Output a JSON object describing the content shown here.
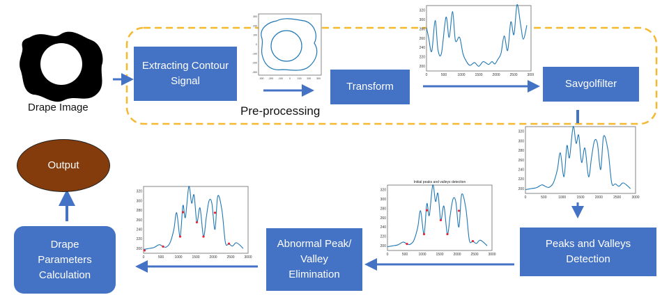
{
  "colors": {
    "box_fill": "#4472c4",
    "dashed_border": "#f5b830",
    "arrow": "#4472c4",
    "output_fill": "#843c0c",
    "signal_line": "#1f77b4",
    "peak_marker": "#e8253a"
  },
  "labels": {
    "drape_image": "Drape Image",
    "extracting": "Extracting Contour\nSignal",
    "transform": "Transform",
    "savgol": "Savgolfilter",
    "preprocessing": "Pre-processing",
    "peaks_valleys": "Peaks and Valleys\nDetection",
    "abnormal": "Abnormal Peak/\nValley\nElimination",
    "drape_params": "Drape\nParameters\nCalculation",
    "output": "Output"
  },
  "plots": {
    "contour": {
      "x_ticks": [
        "-300",
        "-200",
        "-100",
        "0",
        "100",
        "200",
        "300"
      ],
      "y_ticks": [
        "300",
        "200",
        "100",
        "0",
        "-100",
        "-200",
        "-300"
      ]
    },
    "transform": {
      "type": "line",
      "x_ticks": [
        "0",
        "500",
        "1000",
        "1500",
        "2000",
        "2500",
        "3000"
      ],
      "y_ticks": [
        "200",
        "220",
        "240",
        "260",
        "280",
        "300",
        "320"
      ],
      "xlim": [
        0,
        3000
      ],
      "ylim": [
        190,
        330
      ],
      "x": [
        0,
        60,
        150,
        250,
        330,
        430,
        560,
        650,
        750,
        830,
        950,
        1050,
        1150,
        1250,
        1380,
        1500,
        1630,
        1780,
        1880,
        1960,
        2050,
        2140,
        2230,
        2330,
        2420,
        2510,
        2600,
        2700,
        2780,
        2880
      ],
      "y": [
        283,
        262,
        232,
        298,
        235,
        228,
        305,
        262,
        317,
        255,
        262,
        226,
        210,
        202,
        208,
        200,
        210,
        204,
        210,
        205,
        215,
        228,
        265,
        234,
        295,
        268,
        332,
        290,
        258,
        288
      ]
    },
    "smoothed": {
      "type": "line",
      "x_ticks": [
        "0",
        "500",
        "1000",
        "1500",
        "2000",
        "2500",
        "3000"
      ],
      "y_ticks": [
        "200",
        "220",
        "240",
        "260",
        "280",
        "300",
        "320"
      ],
      "xlim": [
        0,
        3000
      ],
      "ylim": [
        190,
        330
      ],
      "x": [
        0,
        150,
        300,
        450,
        560,
        650,
        760,
        870,
        950,
        1050,
        1130,
        1200,
        1300,
        1380,
        1450,
        1530,
        1620,
        1720,
        1800,
        1880,
        1960,
        2050,
        2130,
        2250,
        2350,
        2450,
        2550,
        2650,
        2750,
        2860
      ],
      "y": [
        198,
        200,
        202,
        208,
        204,
        203,
        212,
        240,
        275,
        225,
        290,
        265,
        330,
        295,
        312,
        255,
        285,
        225,
        265,
        300,
        295,
        240,
        310,
        280,
        212,
        210,
        205,
        212,
        208,
        200
      ]
    },
    "peaks_initial": {
      "type": "line",
      "title": "Initial peaks and valleys detection",
      "x_ticks": [
        "0",
        "500",
        "1000",
        "1500",
        "2000",
        "2500",
        "3000"
      ],
      "y_ticks": [
        "200",
        "220",
        "240",
        "260",
        "280",
        "300",
        "320"
      ],
      "xlim": [
        0,
        3000
      ],
      "ylim": [
        190,
        330
      ],
      "x": [
        0,
        150,
        300,
        450,
        560,
        650,
        760,
        870,
        950,
        1050,
        1130,
        1200,
        1300,
        1380,
        1450,
        1530,
        1620,
        1720,
        1800,
        1880,
        1960,
        2050,
        2130,
        2250,
        2350,
        2450,
        2550,
        2650,
        2750,
        2860
      ],
      "y": [
        198,
        200,
        202,
        208,
        204,
        203,
        212,
        240,
        275,
        225,
        290,
        265,
        330,
        295,
        312,
        255,
        285,
        225,
        265,
        300,
        295,
        240,
        310,
        280,
        212,
        210,
        205,
        212,
        208,
        200
      ],
      "markers": [
        {
          "x": 560,
          "y": 204
        },
        {
          "x": 1050,
          "y": 225
        },
        {
          "x": 1130,
          "y": 276
        },
        {
          "x": 1530,
          "y": 255
        },
        {
          "x": 1720,
          "y": 225
        },
        {
          "x": 2050,
          "y": 275
        },
        {
          "x": 2450,
          "y": 210
        }
      ]
    },
    "peaks_final": {
      "type": "line",
      "x_ticks": [
        "0",
        "500",
        "1000",
        "1500",
        "2000",
        "2500",
        "3000"
      ],
      "y_ticks": [
        "200",
        "220",
        "240",
        "260",
        "280",
        "300",
        "320"
      ],
      "xlim": [
        0,
        3000
      ],
      "ylim": [
        190,
        330
      ],
      "x": [
        0,
        150,
        300,
        450,
        560,
        650,
        760,
        870,
        950,
        1050,
        1130,
        1200,
        1300,
        1380,
        1450,
        1530,
        1620,
        1720,
        1800,
        1880,
        1960,
        2050,
        2130,
        2250,
        2350,
        2450,
        2550,
        2650,
        2750,
        2860
      ],
      "y": [
        198,
        200,
        202,
        208,
        204,
        203,
        212,
        240,
        275,
        225,
        290,
        265,
        330,
        295,
        312,
        255,
        285,
        225,
        265,
        300,
        295,
        240,
        310,
        280,
        212,
        210,
        205,
        212,
        208,
        200
      ],
      "markers": [
        {
          "x": 30,
          "y": 196
        },
        {
          "x": 560,
          "y": 204
        },
        {
          "x": 1050,
          "y": 225
        },
        {
          "x": 1130,
          "y": 276
        },
        {
          "x": 1530,
          "y": 255
        },
        {
          "x": 1720,
          "y": 225
        },
        {
          "x": 2050,
          "y": 275
        },
        {
          "x": 2450,
          "y": 210
        }
      ]
    }
  }
}
